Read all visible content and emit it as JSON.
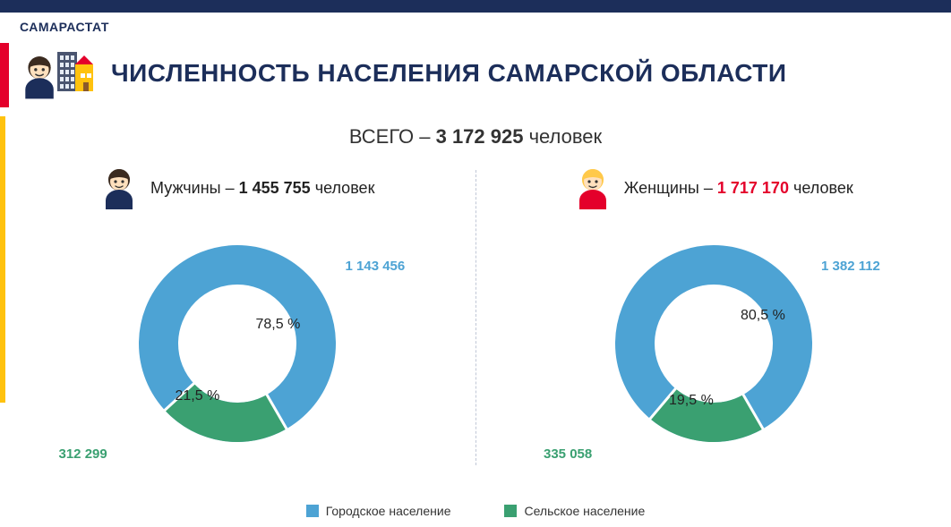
{
  "brand": {
    "text": "САМАРАСТАТ",
    "color": "#1c2e5a"
  },
  "accent": {
    "red": "#e4002b",
    "yellow": "#ffc20e",
    "navy": "#1c2e5a"
  },
  "title": {
    "text": "ЧИСЛЕННОСТЬ НАСЕЛЕНИЯ САМАРСКОЙ ОБЛАСТИ",
    "color": "#1c2e5a",
    "fontsize": 28
  },
  "subtitle": {
    "prefix": "ВСЕГО – ",
    "total": "3 172 925",
    "suffix": " человек",
    "color": "#333333"
  },
  "chart_colors": {
    "urban": "#4da3d4",
    "rural": "#3aa071"
  },
  "men": {
    "label": "Мужчины – ",
    "total": "1 455 755",
    "unit": " человек",
    "total_color": "#222222",
    "urban": {
      "pct": 78.5,
      "pct_label": "78,5 %",
      "value": "1 143 456"
    },
    "rural": {
      "pct": 21.5,
      "pct_label": "21,5 %",
      "value": "312 299"
    },
    "donut": {
      "outer_r": 110,
      "inner_r": 66,
      "bg": "#ffffff"
    }
  },
  "women": {
    "label": "Женщины – ",
    "total": "1 717 170",
    "unit": " человек",
    "total_color": "#e4002b",
    "urban": {
      "pct": 80.5,
      "pct_label": "80,5 %",
      "value": "1 382 112"
    },
    "rural": {
      "pct": 19.5,
      "pct_label": "19,5 %",
      "value": "335 058"
    },
    "donut": {
      "outer_r": 110,
      "inner_r": 66,
      "bg": "#ffffff"
    }
  },
  "legend": {
    "urban": "Городское население",
    "rural": "Сельское население"
  },
  "icons": {
    "person_face": "#ffe0bd",
    "man_hair": "#3b2b20",
    "woman_hair": "#ffc94a",
    "man_shirt": "#1c2e5a",
    "woman_shirt": "#e4002b",
    "bld1": "#4a5570",
    "bld2": "#ffc20e",
    "win": "#e6ecf5"
  }
}
